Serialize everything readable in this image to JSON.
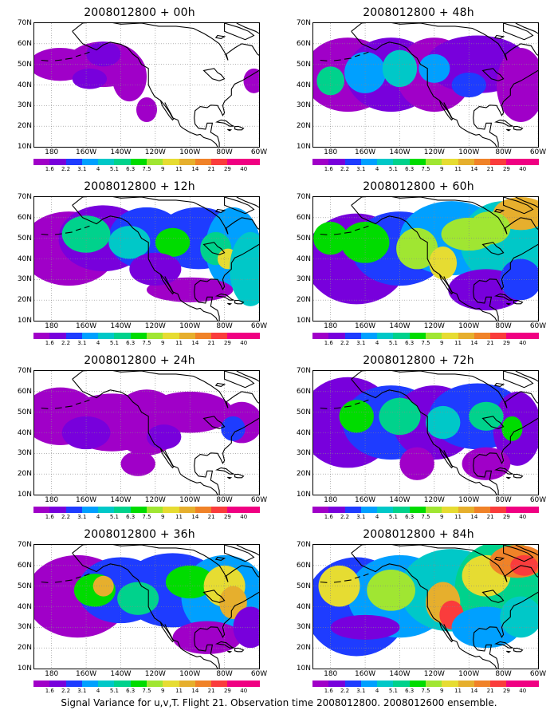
{
  "panels": [
    {
      "title": "2008012800 + 00h",
      "level": 0
    },
    {
      "title": "2008012800 + 48h",
      "level": 4
    },
    {
      "title": "2008012800 + 12h",
      "level": 1
    },
    {
      "title": "2008012800 + 60h",
      "level": 5
    },
    {
      "title": "2008012800 + 24h",
      "level": 2
    },
    {
      "title": "2008012800 + 72h",
      "level": 6
    },
    {
      "title": "2008012800 + 36h",
      "level": 3
    },
    {
      "title": "2008012800 + 84h",
      "level": 7
    }
  ],
  "lat_labels": [
    "70N",
    "60N",
    "50N",
    "40N",
    "30N",
    "20N",
    "10N"
  ],
  "lon_labels": [
    "180",
    "160W",
    "140W",
    "120W",
    "100W",
    "80W",
    "60W"
  ],
  "colorbar": {
    "colors": [
      "#a000c8",
      "#7800dc",
      "#1e3cff",
      "#00a0ff",
      "#00c8c8",
      "#00d28c",
      "#00dc00",
      "#a0e632",
      "#e6dc32",
      "#e6af2d",
      "#f08228",
      "#fa3c3c",
      "#f00082"
    ],
    "labels": [
      "1.6",
      "2.2",
      "3.1",
      "4",
      "5.1",
      "6.3",
      "7.5",
      "9",
      "11",
      "14",
      "21",
      "29",
      "40"
    ]
  },
  "caption": "Signal Variance for u,v,T. Flight 21. Observation time 2008012800. 2008012600 ensemble."
}
